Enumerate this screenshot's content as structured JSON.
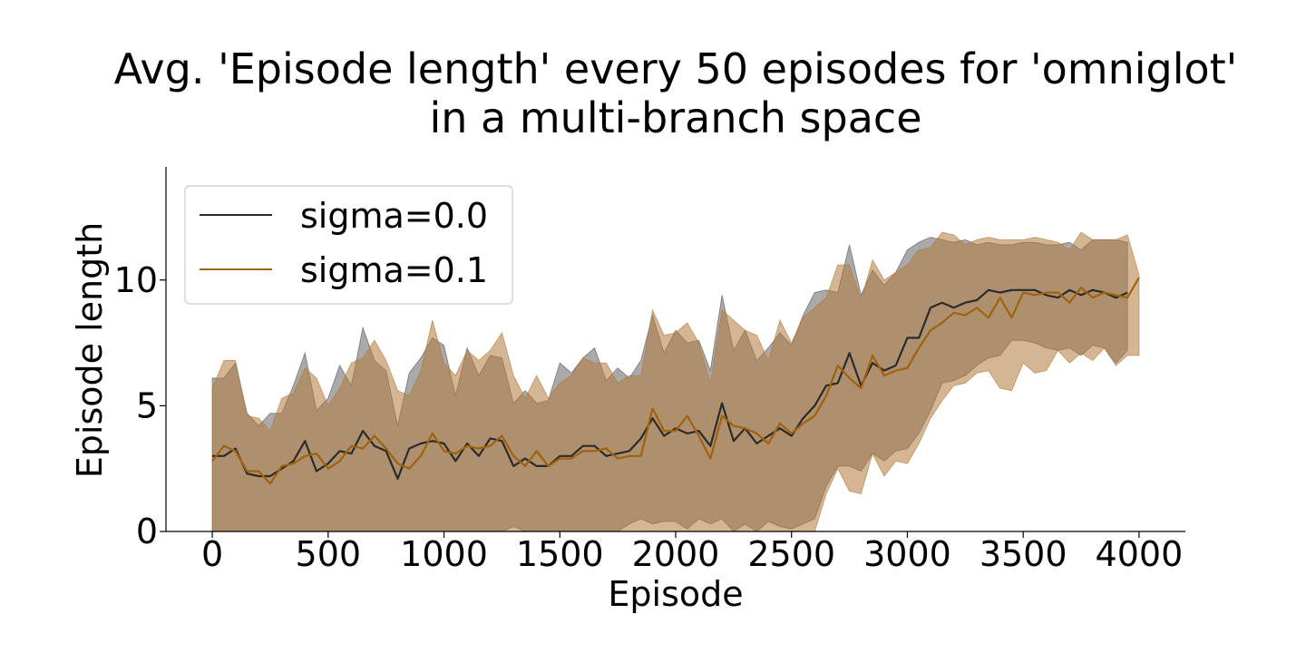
{
  "chart_data": {
    "type": "line",
    "title_lines": [
      "Avg. 'Episode length' every 50 episodes for 'omniglot'",
      "in a multi-branch space"
    ],
    "xlabel": "Episode",
    "ylabel": "Episode length",
    "xlim": [
      -200,
      4200
    ],
    "ylim": [
      0,
      14.5
    ],
    "xticks": [
      0,
      500,
      1000,
      1500,
      2000,
      2500,
      3000,
      3500,
      4000
    ],
    "yticks": [
      0,
      5,
      10
    ],
    "grid": false,
    "legend_position": "top-left",
    "x": [
      0,
      50,
      100,
      150,
      200,
      250,
      300,
      350,
      400,
      450,
      500,
      550,
      600,
      650,
      700,
      750,
      800,
      850,
      900,
      950,
      1000,
      1050,
      1100,
      1150,
      1200,
      1250,
      1300,
      1350,
      1400,
      1450,
      1500,
      1550,
      1600,
      1650,
      1700,
      1750,
      1800,
      1850,
      1900,
      1950,
      2000,
      2050,
      2100,
      2150,
      2200,
      2250,
      2300,
      2350,
      2400,
      2450,
      2500,
      2550,
      2600,
      2650,
      2700,
      2750,
      2800,
      2850,
      2900,
      2950,
      3000,
      3050,
      3100,
      3150,
      3200,
      3250,
      3300,
      3350,
      3400,
      3450,
      3500,
      3550,
      3600,
      3650,
      3700,
      3750,
      3800,
      3850,
      3900,
      3950,
      4000
    ],
    "series": [
      {
        "name": "sigma=0.0",
        "color": "#2b2b2b",
        "band_color": "#555555",
        "mean": [
          3.0,
          3.0,
          3.3,
          2.3,
          2.2,
          2.2,
          2.5,
          2.8,
          3.6,
          2.4,
          2.7,
          3.2,
          3.1,
          4.0,
          3.4,
          3.2,
          2.1,
          3.3,
          3.5,
          3.6,
          3.5,
          2.8,
          3.5,
          3.0,
          3.7,
          3.6,
          2.6,
          2.9,
          2.6,
          2.6,
          3.0,
          3.0,
          3.4,
          3.4,
          3.0,
          3.1,
          3.2,
          3.7,
          4.5,
          3.8,
          4.1,
          3.9,
          4.0,
          3.4,
          5.1,
          3.6,
          4.1,
          3.5,
          3.8,
          4.1,
          3.8,
          4.5,
          5.0,
          5.8,
          5.9,
          7.1,
          5.8,
          6.7,
          6.4,
          6.6,
          7.7,
          7.7,
          8.9,
          9.1,
          8.9,
          9.1,
          9.2,
          9.6,
          9.5,
          9.6,
          9.6,
          9.6,
          9.4,
          9.3,
          9.6,
          9.4,
          9.6,
          9.5,
          9.3,
          9.5,
          null
        ],
        "lower": [
          0.0,
          0.0,
          0.0,
          0.0,
          0.0,
          0.0,
          0.0,
          0.0,
          0.0,
          0.0,
          0.0,
          0.0,
          0.0,
          0.0,
          0.0,
          0.0,
          0.0,
          0.0,
          0.0,
          0.0,
          0.0,
          0.0,
          0.0,
          0.0,
          0.0,
          0.0,
          0.2,
          0.0,
          0.0,
          0.0,
          0.0,
          0.0,
          0.0,
          0.0,
          0.0,
          0.0,
          0.3,
          0.5,
          0.3,
          0.4,
          0.4,
          0.1,
          0.5,
          0.3,
          0.5,
          0.0,
          0.3,
          0.0,
          0.4,
          0.2,
          0.1,
          0.3,
          0.5,
          1.8,
          2.6,
          2.6,
          2.4,
          3.1,
          2.8,
          3.2,
          3.3,
          3.9,
          4.8,
          5.9,
          6.0,
          6.2,
          6.6,
          6.9,
          7.0,
          7.6,
          7.6,
          7.5,
          7.3,
          7.2,
          7.3,
          7.0,
          7.4,
          7.3,
          6.7,
          7.2,
          null
        ],
        "upper": [
          6.1,
          6.1,
          6.7,
          4.7,
          4.2,
          4.7,
          4.7,
          5.8,
          7.1,
          4.8,
          5.3,
          6.6,
          5.8,
          8.1,
          6.8,
          6.4,
          4.2,
          6.3,
          6.9,
          7.7,
          7.4,
          5.4,
          7.3,
          6.2,
          7.0,
          6.9,
          5.1,
          5.6,
          5.1,
          5.2,
          6.7,
          6.3,
          6.9,
          7.3,
          6.0,
          6.5,
          6.1,
          6.8,
          8.6,
          7.1,
          8.0,
          7.5,
          7.6,
          6.4,
          9.4,
          7.2,
          8.0,
          6.8,
          7.3,
          7.9,
          7.4,
          8.6,
          9.5,
          9.6,
          9.5,
          11.4,
          9.4,
          10.4,
          9.8,
          10.3,
          11.2,
          11.5,
          11.7,
          11.6,
          11.5,
          11.6,
          11.4,
          11.5,
          11.4,
          11.4,
          11.5,
          11.5,
          11.4,
          11.4,
          11.5,
          11.2,
          11.6,
          11.6,
          11.6,
          11.5,
          null
        ]
      },
      {
        "name": "sigma=0.1",
        "color": "#a0620e",
        "band_color": "#b07a3c",
        "mean": [
          2.8,
          3.4,
          3.2,
          2.4,
          2.4,
          1.9,
          2.6,
          2.7,
          3.0,
          3.1,
          2.5,
          2.8,
          3.4,
          3.3,
          3.8,
          3.3,
          2.7,
          2.5,
          3.0,
          3.9,
          3.2,
          3.1,
          3.4,
          3.3,
          3.4,
          3.8,
          3.0,
          2.6,
          3.2,
          2.6,
          2.9,
          2.9,
          3.2,
          3.2,
          3.3,
          2.9,
          3.0,
          3.0,
          4.9,
          4.0,
          4.0,
          4.6,
          3.8,
          2.9,
          4.6,
          4.2,
          4.1,
          3.9,
          3.5,
          4.3,
          3.9,
          4.3,
          4.6,
          5.4,
          6.6,
          6.1,
          5.7,
          7.0,
          6.2,
          6.4,
          6.5,
          7.3,
          8.0,
          8.3,
          8.7,
          8.6,
          8.9,
          8.5,
          9.3,
          8.5,
          9.5,
          9.4,
          9.5,
          9.5,
          9.1,
          9.7,
          9.3,
          9.5,
          9.4,
          9.3,
          10.1
        ]
      }
    ],
    "band_sigma01_lower": [
      0.0,
      0.0,
      0.0,
      0.0,
      0.0,
      0.0,
      0.0,
      0.0,
      0.0,
      0.0,
      0.0,
      0.0,
      0.0,
      0.0,
      0.0,
      0.0,
      0.0,
      0.0,
      0.0,
      0.0,
      0.0,
      0.0,
      0.0,
      0.0,
      0.0,
      0.0,
      0.0,
      0.0,
      0.0,
      0.0,
      0.0,
      0.0,
      0.0,
      0.0,
      0.0,
      0.0,
      0.0,
      0.0,
      0.0,
      0.0,
      0.0,
      0.0,
      0.0,
      0.0,
      0.0,
      0.0,
      0.0,
      0.0,
      0.0,
      0.0,
      0.0,
      0.0,
      0.0,
      1.5,
      2.5,
      1.6,
      1.5,
      3.1,
      2.2,
      2.8,
      2.7,
      3.5,
      4.5,
      5.2,
      5.8,
      5.9,
      6.3,
      6.4,
      5.7,
      5.6,
      6.7,
      6.3,
      6.4,
      7.2,
      6.7,
      7.1,
      6.8,
      7.3,
      6.6,
      7.0,
      7.0
    ],
    "band_sigma01_upper": [
      5.7,
      6.8,
      6.8,
      4.6,
      4.5,
      4.0,
      5.3,
      5.5,
      6.5,
      6.1,
      5.0,
      5.7,
      6.7,
      6.9,
      7.6,
      6.8,
      5.6,
      5.4,
      6.4,
      8.4,
      6.7,
      6.2,
      7.2,
      6.8,
      7.2,
      7.9,
      6.2,
      5.3,
      6.2,
      5.3,
      5.9,
      6.2,
      6.9,
      6.7,
      6.7,
      5.9,
      6.2,
      6.2,
      8.8,
      7.8,
      7.9,
      8.3,
      7.5,
      5.9,
      8.8,
      8.4,
      8.0,
      7.8,
      6.8,
      8.4,
      7.5,
      8.5,
      8.9,
      9.3,
      10.6,
      10.6,
      9.2,
      10.8,
      10.0,
      10.3,
      10.6,
      11.2,
      11.3,
      11.9,
      11.8,
      11.4,
      11.6,
      11.7,
      11.6,
      11.6,
      11.6,
      11.7,
      11.6,
      11.5,
      11.2,
      11.9,
      11.6,
      11.6,
      11.6,
      11.8,
      10.2
    ]
  }
}
